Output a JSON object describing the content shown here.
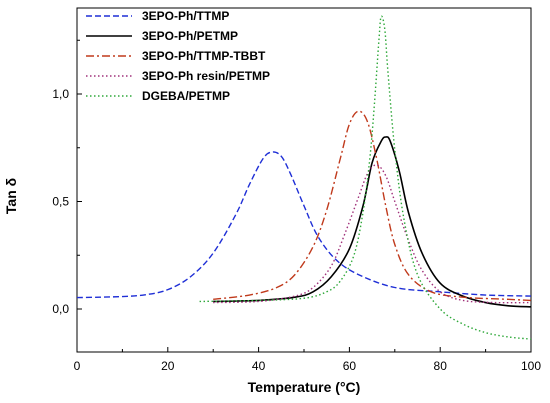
{
  "chart_data": {
    "type": "line",
    "xlabel": "Temperature (°C)",
    "ylabel": "Tan δ",
    "xlim": [
      0,
      100
    ],
    "ylim": [
      -0.2,
      1.4
    ],
    "x_ticks": [
      0,
      20,
      40,
      60,
      80,
      100
    ],
    "y_ticks": [
      0.0,
      0.5,
      1.0
    ],
    "x_tick_labels": [
      "0",
      "20",
      "40",
      "60",
      "80",
      "100"
    ],
    "y_tick_labels": [
      "0,0",
      "0,5",
      "1,0"
    ],
    "grid": false,
    "legend_position": "top-left",
    "series": [
      {
        "name": "3EPO-Ph/TTMP",
        "color": "#1f2fd6",
        "dash": "dashed",
        "points": [
          [
            0,
            0.053
          ],
          [
            5,
            0.055
          ],
          [
            10,
            0.058
          ],
          [
            15,
            0.066
          ],
          [
            20,
            0.09
          ],
          [
            25,
            0.15
          ],
          [
            30,
            0.26
          ],
          [
            35,
            0.44
          ],
          [
            38,
            0.58
          ],
          [
            41,
            0.7
          ],
          [
            43,
            0.73
          ],
          [
            45,
            0.71
          ],
          [
            47,
            0.63
          ],
          [
            50,
            0.48
          ],
          [
            53,
            0.34
          ],
          [
            57,
            0.23
          ],
          [
            62,
            0.16
          ],
          [
            70,
            0.1
          ],
          [
            80,
            0.08
          ],
          [
            90,
            0.065
          ],
          [
            100,
            0.06
          ]
        ]
      },
      {
        "name": "3EPO-Ph/PETMP",
        "color": "#000000",
        "dash": "solid",
        "points": [
          [
            30,
            0.035
          ],
          [
            40,
            0.04
          ],
          [
            48,
            0.055
          ],
          [
            52,
            0.08
          ],
          [
            56,
            0.15
          ],
          [
            60,
            0.28
          ],
          [
            63,
            0.48
          ],
          [
            65,
            0.68
          ],
          [
            67,
            0.78
          ],
          [
            68,
            0.8
          ],
          [
            69,
            0.78
          ],
          [
            71,
            0.64
          ],
          [
            73,
            0.45
          ],
          [
            76,
            0.26
          ],
          [
            80,
            0.12
          ],
          [
            85,
            0.06
          ],
          [
            90,
            0.03
          ],
          [
            95,
            0.015
          ],
          [
            100,
            0.01
          ]
        ]
      },
      {
        "name": "3EPO-Ph/TTMP-TBBT",
        "color": "#c03a1c",
        "dash": "dashdot",
        "points": [
          [
            30,
            0.045
          ],
          [
            38,
            0.065
          ],
          [
            44,
            0.1
          ],
          [
            48,
            0.16
          ],
          [
            52,
            0.29
          ],
          [
            55,
            0.46
          ],
          [
            58,
            0.7
          ],
          [
            60,
            0.86
          ],
          [
            62,
            0.92
          ],
          [
            64,
            0.87
          ],
          [
            66,
            0.7
          ],
          [
            68,
            0.48
          ],
          [
            70,
            0.3
          ],
          [
            73,
            0.16
          ],
          [
            78,
            0.08
          ],
          [
            85,
            0.055
          ],
          [
            95,
            0.045
          ],
          [
            100,
            0.04
          ]
        ]
      },
      {
        "name": "3EPO-Ph resin/PETMP",
        "color": "#a0307a",
        "dash": "dotted",
        "points": [
          [
            30,
            0.03
          ],
          [
            40,
            0.035
          ],
          [
            48,
            0.06
          ],
          [
            52,
            0.1
          ],
          [
            56,
            0.2
          ],
          [
            59,
            0.35
          ],
          [
            62,
            0.52
          ],
          [
            64,
            0.63
          ],
          [
            66,
            0.67
          ],
          [
            68,
            0.62
          ],
          [
            70,
            0.5
          ],
          [
            73,
            0.32
          ],
          [
            76,
            0.18
          ],
          [
            80,
            0.08
          ],
          [
            85,
            0.04
          ],
          [
            92,
            0.03
          ],
          [
            100,
            0.03
          ]
        ]
      },
      {
        "name": "DGEBA/PETMP",
        "color": "#2fa83a",
        "dash": "dotted",
        "points": [
          [
            27,
            0.035
          ],
          [
            40,
            0.04
          ],
          [
            50,
            0.05
          ],
          [
            55,
            0.08
          ],
          [
            58,
            0.13
          ],
          [
            61,
            0.25
          ],
          [
            63,
            0.45
          ],
          [
            64.5,
            0.7
          ],
          [
            65.5,
            0.95
          ],
          [
            66.5,
            1.25
          ],
          [
            67,
            1.36
          ],
          [
            67.8,
            1.3
          ],
          [
            68.5,
            1.1
          ],
          [
            70,
            0.74
          ],
          [
            72,
            0.42
          ],
          [
            75,
            0.16
          ],
          [
            80,
            0.0
          ],
          [
            85,
            -0.07
          ],
          [
            90,
            -0.11
          ],
          [
            95,
            -0.13
          ],
          [
            100,
            -0.14
          ]
        ]
      }
    ]
  }
}
